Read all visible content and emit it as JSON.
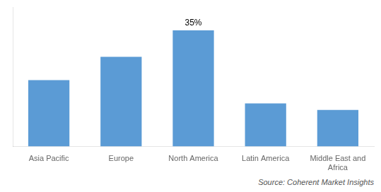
{
  "chart_data": {
    "type": "bar",
    "categories": [
      "Asia Pacific",
      "Europe",
      "North America",
      "Latin America",
      "Middle East and\nAfrica"
    ],
    "values": [
      20,
      27,
      35,
      13,
      11
    ],
    "color": "#5B9BD5",
    "ylim": [
      0,
      42
    ],
    "yticks": [],
    "tick_labels": "x",
    "grid": false,
    "annotations": [
      {
        "category": "North America",
        "text": "35%"
      }
    ],
    "source": "Source: Coherent Market Insights"
  }
}
